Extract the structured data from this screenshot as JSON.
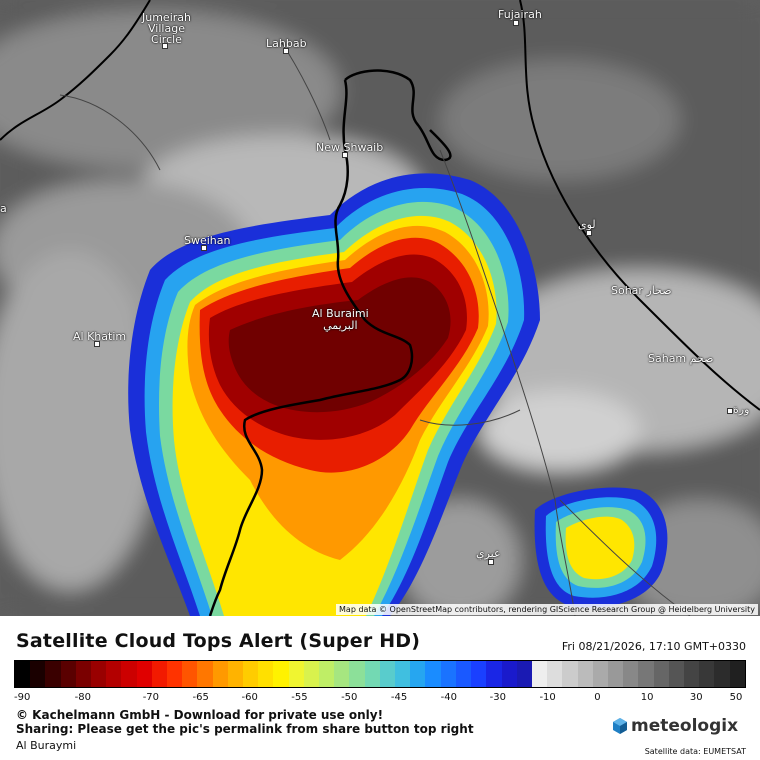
{
  "map": {
    "attribution": "Map data © OpenStreetMap contributors, rendering GIScience Research Group @ Heidelberg University",
    "places": [
      {
        "key": "jumeirah",
        "lines": [
          "Jumeirah",
          "Village",
          "Circle"
        ]
      },
      {
        "key": "lahbab",
        "lines": [
          "Lahbab"
        ]
      },
      {
        "key": "fujairah",
        "lines": [
          "Fujairah"
        ]
      },
      {
        "key": "new-shwaib",
        "lines": [
          "New Shwaib"
        ]
      },
      {
        "key": "sweihan",
        "lines": [
          "Sweihan"
        ]
      },
      {
        "key": "al-khatim",
        "lines": [
          "Al Khatim"
        ]
      },
      {
        "key": "al-buraimi",
        "lines": [
          "Al Buraimi",
          "البريمي"
        ]
      },
      {
        "key": "liwa",
        "lines": [
          "لوى"
        ]
      },
      {
        "key": "sohar",
        "lines": [
          "Sohar صحار"
        ]
      },
      {
        "key": "saham",
        "lines": [
          "Saham صحم"
        ]
      },
      {
        "key": "ibra",
        "lines": [
          "عبري"
        ]
      },
      {
        "key": "east-edge",
        "lines": [
          "ورة"
        ]
      },
      {
        "key": "west-edge",
        "lines": [
          "a"
        ]
      }
    ]
  },
  "footer": {
    "title": "Satellite Cloud Tops Alert (Super HD)",
    "datetime": "Fri 08/21/2026, 17:10 GMT+0330",
    "copyright": "© Kachelmann GmbH - Download for private use only!",
    "sharing": "Sharing: Please get the pic's permalink from share button top right",
    "region": "Al Buraymi",
    "brand": "meteologix",
    "credit": "Satellite data: EUMETSAT"
  },
  "legend": {
    "ticks": [
      "-90",
      "-80",
      "-70",
      "-65",
      "-60",
      "-55",
      "-50",
      "-45",
      "-40",
      "-30",
      "-10",
      "0",
      "10",
      "30",
      "50"
    ],
    "colors": [
      "#000000",
      "#1a0000",
      "#3a0000",
      "#5a0000",
      "#7a0000",
      "#990000",
      "#b30000",
      "#cc0000",
      "#e00000",
      "#f21a00",
      "#ff3300",
      "#ff5500",
      "#ff7700",
      "#ff9900",
      "#ffb300",
      "#ffcc00",
      "#ffe000",
      "#fff200",
      "#f0f530",
      "#d9f24d",
      "#bfee66",
      "#a6e680",
      "#8ce099",
      "#73d9b3",
      "#59cccc",
      "#40bfe0",
      "#26a6f0",
      "#1a8cff",
      "#1a73ff",
      "#1a59ff",
      "#1a40ff",
      "#1a26e6",
      "#1a1acc",
      "#1a1ab3",
      "#eeeeee",
      "#dddddd",
      "#cccccc",
      "#bbbbbb",
      "#aaaaaa",
      "#999999",
      "#888888",
      "#777777",
      "#666666",
      "#555555",
      "#444444",
      "#383838",
      "#2c2c2c",
      "#202020"
    ]
  }
}
